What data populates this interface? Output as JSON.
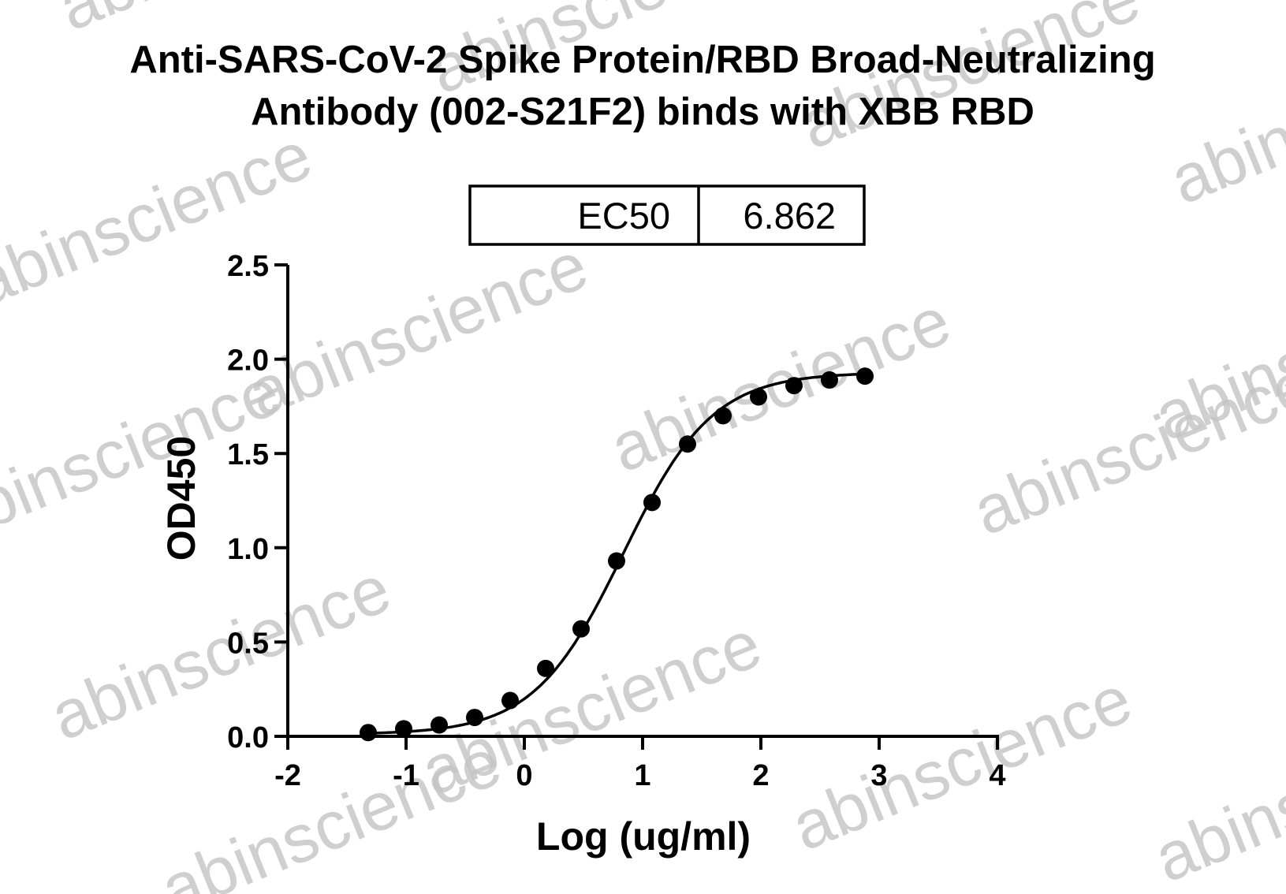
{
  "watermark": "abinscience",
  "chart_data": {
    "type": "scatter",
    "title_lines": [
      "Anti-SARS-CoV-2 Spike Protein/RBD Broad-Neutralizing",
      "Antibody (002-S21F2) binds with XBB RBD"
    ],
    "xlabel": "Log (ug/ml)",
    "ylabel": "OD450",
    "xlim": [
      -2,
      4
    ],
    "ylim": [
      0,
      2.5
    ],
    "x_ticks": [
      -2,
      -1,
      0,
      1,
      2,
      3,
      4
    ],
    "x_tick_labels": [
      "-2",
      "-1",
      "0",
      "1",
      "2",
      "3",
      "4"
    ],
    "y_ticks": [
      0,
      0.5,
      1,
      1.5,
      2,
      2.5
    ],
    "y_tick_labels": [
      "0.0",
      "0.5",
      "1.0",
      "1.5",
      "2.0",
      "2.5"
    ],
    "grid": false,
    "series": [
      {
        "marker": "filled-circle",
        "color": "#000000",
        "x": [
          -1.32,
          -1.02,
          -0.72,
          -0.42,
          -0.12,
          0.18,
          0.48,
          0.78,
          1.08,
          1.38,
          1.68,
          1.98,
          2.28,
          2.58,
          2.88
        ],
        "y": [
          0.02,
          0.04,
          0.06,
          0.1,
          0.19,
          0.36,
          0.57,
          0.93,
          1.24,
          1.55,
          1.7,
          1.8,
          1.86,
          1.89,
          1.91
        ]
      }
    ],
    "fit_curve": {
      "type": "four-parameter-logistic",
      "color": "#000000",
      "bottom": 0.01,
      "top": 1.93,
      "log_ec50": 0.8365,
      "hill_slope": 1.15
    },
    "ec50_table": {
      "label": "EC50",
      "value": "6.862"
    }
  }
}
